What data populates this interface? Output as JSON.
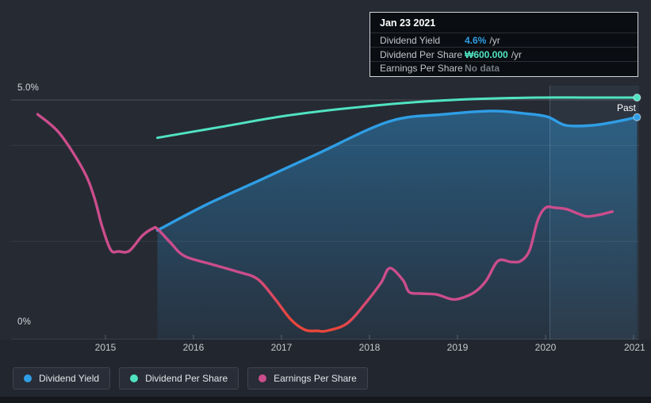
{
  "past_label": "Past",
  "tooltip": {
    "date": "Jan 23 2021",
    "rows": [
      {
        "label": "Dividend Yield",
        "value": "4.6%",
        "suffix": "/yr",
        "value_color": "#2f9ee5"
      },
      {
        "label": "Dividend Per Share",
        "value": "₩600.000",
        "suffix": "/yr",
        "value_color": "#50e3c2"
      },
      {
        "label": "Earnings Per Share",
        "value": "No data",
        "suffix": "",
        "value_color": "#757a81"
      }
    ]
  },
  "legend": {
    "items": [
      {
        "label": "Dividend Yield",
        "color": "#2f9ee5"
      },
      {
        "label": "Dividend Per Share",
        "color": "#50e3c2"
      },
      {
        "label": "Earnings Per Share",
        "color": "#cb4d8c"
      }
    ]
  },
  "colors": {
    "background": "#262a33",
    "dividend_yield": "#2f9ee5",
    "dividend_per_share": "#50e3c2",
    "earnings_per_share": "#cb4d8c",
    "earnings_negative_red": "#e8463c",
    "tooltip_bg": "#0a0d11",
    "past_band": "#7fb2e0"
  },
  "chart_data": {
    "type": "line",
    "title": "Dividend history (hovered at Jan 23 2021: Dividend Yield 4.6%/yr, Dividend Per Share ₩600.000/yr, Earnings Per Share No data)",
    "x_tick_labels": [
      "2015",
      "2016",
      "2017",
      "2018",
      "2019",
      "2020",
      "2021"
    ],
    "y_tick_labels": {
      "top": "5.0%",
      "bottom": "0%"
    },
    "y_axis": {
      "min": 0,
      "max": 5.0,
      "unit": "%",
      "grid": true
    },
    "x_axis": {
      "min_year": 2014.2,
      "max_year": 2021.06
    },
    "gridlines": [
      {
        "pct": 5.0,
        "major": true
      },
      {
        "pct": 4.05,
        "major": false
      },
      {
        "pct": 2.05,
        "major": false
      },
      {
        "pct": 0.0,
        "major": true
      }
    ],
    "legend_position": "bottom-left",
    "past_band_start_year": 2020.05,
    "series": [
      {
        "name": "Dividend Yield",
        "unit": "% on left axis",
        "color": "#2f9ee5",
        "fill_under": true,
        "end_dot": true,
        "points": [
          [
            2015.59,
            2.28
          ],
          [
            2016.14,
            2.81
          ],
          [
            2016.77,
            3.34
          ],
          [
            2017.4,
            3.87
          ],
          [
            2018.22,
            4.55
          ],
          [
            2018.85,
            4.7
          ],
          [
            2019.39,
            4.77
          ],
          [
            2019.75,
            4.72
          ],
          [
            2020.02,
            4.65
          ],
          [
            2020.23,
            4.47
          ],
          [
            2020.53,
            4.47
          ],
          [
            2020.78,
            4.54
          ],
          [
            2021.04,
            4.64
          ]
        ]
      },
      {
        "name": "Dividend Per Share",
        "unit": "plotted position on 0-5% axis; value at Jan 23 2021 is ₩600.000/yr",
        "color": "#50e3c2",
        "fill_under": false,
        "end_dot": true,
        "points": [
          [
            2015.59,
            4.21
          ],
          [
            2016.32,
            4.44
          ],
          [
            2017.05,
            4.67
          ],
          [
            2017.77,
            4.83
          ],
          [
            2018.49,
            4.95
          ],
          [
            2019.21,
            5.02
          ],
          [
            2019.93,
            5.05
          ],
          [
            2020.47,
            5.05
          ],
          [
            2021.04,
            5.05
          ]
        ]
      },
      {
        "name": "Earnings Per Share",
        "unit": "plotted position on 0-5% axis; line shown red where it bottoms out in 2017",
        "color": "#cb4d8c",
        "fill_under": false,
        "end_dot": false,
        "red_zone": {
          "color": "#e8463c",
          "offsets": [
            0.37,
            0.44,
            0.52,
            0.6
          ]
        },
        "points": [
          [
            2014.23,
            4.7
          ],
          [
            2014.48,
            4.3
          ],
          [
            2014.75,
            3.53
          ],
          [
            2014.87,
            2.98
          ],
          [
            2014.96,
            2.37
          ],
          [
            2015.06,
            1.87
          ],
          [
            2015.15,
            1.84
          ],
          [
            2015.27,
            1.85
          ],
          [
            2015.42,
            2.17
          ],
          [
            2015.54,
            2.32
          ],
          [
            2015.59,
            2.31
          ],
          [
            2015.74,
            2.02
          ],
          [
            2015.9,
            1.74
          ],
          [
            2016.21,
            1.57
          ],
          [
            2016.51,
            1.41
          ],
          [
            2016.73,
            1.26
          ],
          [
            2016.93,
            0.84
          ],
          [
            2017.11,
            0.41
          ],
          [
            2017.27,
            0.2
          ],
          [
            2017.41,
            0.18
          ],
          [
            2017.51,
            0.18
          ],
          [
            2017.74,
            0.33
          ],
          [
            2017.95,
            0.75
          ],
          [
            2018.13,
            1.18
          ],
          [
            2018.23,
            1.49
          ],
          [
            2018.38,
            1.24
          ],
          [
            2018.45,
            0.99
          ],
          [
            2018.58,
            0.96
          ],
          [
            2018.76,
            0.94
          ],
          [
            2018.94,
            0.84
          ],
          [
            2019.07,
            0.88
          ],
          [
            2019.21,
            1.01
          ],
          [
            2019.33,
            1.24
          ],
          [
            2019.46,
            1.64
          ],
          [
            2019.61,
            1.62
          ],
          [
            2019.72,
            1.64
          ],
          [
            2019.82,
            1.87
          ],
          [
            2019.91,
            2.48
          ],
          [
            2020.0,
            2.75
          ],
          [
            2020.11,
            2.75
          ],
          [
            2020.24,
            2.72
          ],
          [
            2020.38,
            2.62
          ],
          [
            2020.47,
            2.57
          ],
          [
            2020.6,
            2.6
          ],
          [
            2020.76,
            2.67
          ]
        ]
      }
    ]
  }
}
